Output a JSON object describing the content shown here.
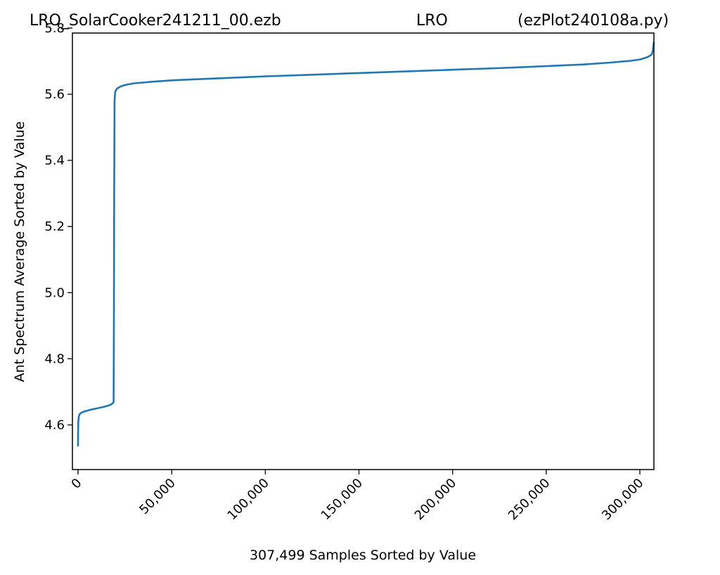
{
  "chart_data": {
    "type": "line",
    "title": {
      "left": "LRO_SolarCooker241211_00.ezb",
      "center": "LRO",
      "right": "(ezPlot240108a.py)"
    },
    "xlabel": "307,499 Samples Sorted by Value",
    "ylabel": "Ant Spectrum Average Sorted by Value",
    "xlim": [
      -3000,
      307499
    ],
    "ylim": [
      4.465,
      5.785
    ],
    "x_ticks": [
      {
        "value": 0,
        "label": "0"
      },
      {
        "value": 50000,
        "label": "50,000"
      },
      {
        "value": 100000,
        "label": "100,000"
      },
      {
        "value": 150000,
        "label": "150,000"
      },
      {
        "value": 200000,
        "label": "200,000"
      },
      {
        "value": 250000,
        "label": "250,000"
      },
      {
        "value": 300000,
        "label": "300,000"
      }
    ],
    "y_ticks": [
      {
        "value": 4.6,
        "label": "4.6"
      },
      {
        "value": 4.8,
        "label": "4.8"
      },
      {
        "value": 5.0,
        "label": "5.0"
      },
      {
        "value": 5.2,
        "label": "5.2"
      },
      {
        "value": 5.4,
        "label": "5.4"
      },
      {
        "value": 5.6,
        "label": "5.6"
      },
      {
        "value": 5.8,
        "label": "5.8"
      }
    ],
    "grid": false,
    "series": [
      {
        "color": "#1f77b4",
        "x": [
          0,
          50,
          150,
          400,
          800,
          1500,
          3000,
          6000,
          10000,
          14000,
          17000,
          18500,
          19000,
          19150,
          19300,
          19500,
          19800,
          20200,
          21000,
          23000,
          26000,
          30000,
          40000,
          50000,
          75000,
          100000,
          125000,
          150000,
          175000,
          200000,
          225000,
          250000,
          270000,
          285000,
          295000,
          300000,
          303000,
          305000,
          306300,
          306900,
          307200,
          307499
        ],
        "y": [
          4.535,
          4.58,
          4.61,
          4.625,
          4.632,
          4.636,
          4.64,
          4.645,
          4.65,
          4.655,
          4.66,
          4.665,
          4.67,
          4.9,
          5.3,
          5.58,
          5.605,
          5.612,
          5.618,
          5.624,
          5.629,
          5.633,
          5.638,
          5.642,
          5.648,
          5.654,
          5.659,
          5.664,
          5.669,
          5.674,
          5.679,
          5.685,
          5.69,
          5.696,
          5.701,
          5.705,
          5.71,
          5.715,
          5.72,
          5.73,
          5.745,
          5.758
        ]
      }
    ]
  }
}
